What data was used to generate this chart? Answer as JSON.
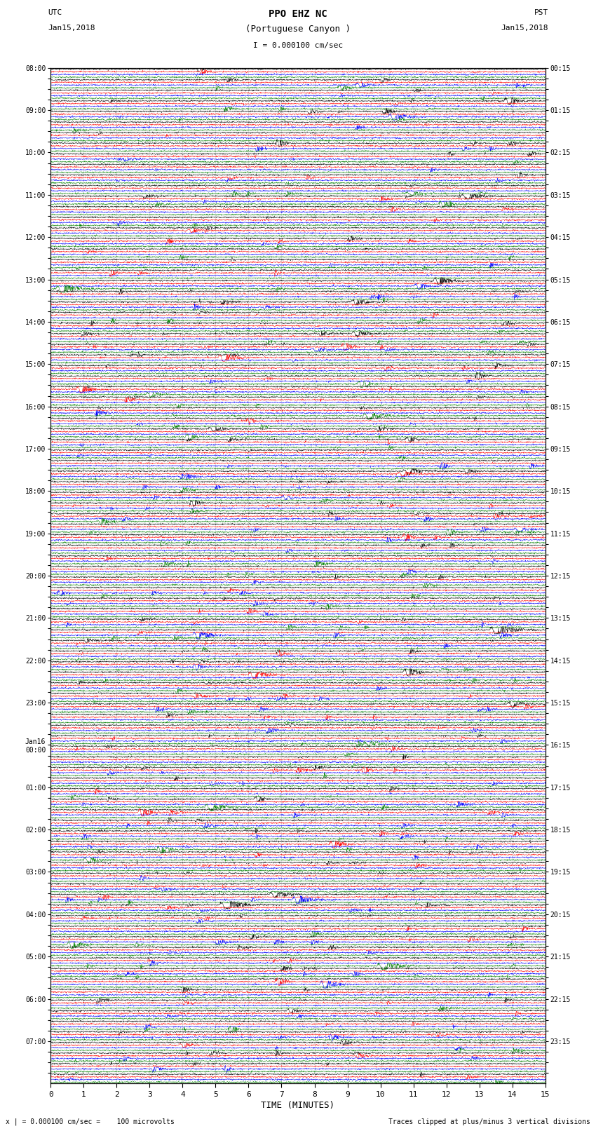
{
  "title_line1": "PPO EHZ NC",
  "title_line2": "(Portuguese Canyon )",
  "title_scale": "I = 0.000100 cm/sec",
  "utc_label": "UTC",
  "utc_date": "Jan15,2018",
  "pst_label": "PST",
  "pst_date": "Jan15,2018",
  "footer_left": "x | = 0.000100 cm/sec =    100 microvolts",
  "footer_right": "Traces clipped at plus/minus 3 vertical divisions",
  "xlabel": "TIME (MINUTES)",
  "left_times_utc": [
    "08:00",
    "",
    "",
    "",
    "09:00",
    "",
    "",
    "",
    "10:00",
    "",
    "",
    "",
    "11:00",
    "",
    "",
    "",
    "12:00",
    "",
    "",
    "",
    "13:00",
    "",
    "",
    "",
    "14:00",
    "",
    "",
    "",
    "15:00",
    "",
    "",
    "",
    "16:00",
    "",
    "",
    "",
    "17:00",
    "",
    "",
    "",
    "18:00",
    "",
    "",
    "",
    "19:00",
    "",
    "",
    "",
    "20:00",
    "",
    "",
    "",
    "21:00",
    "",
    "",
    "",
    "22:00",
    "",
    "",
    "",
    "23:00",
    "",
    "",
    "",
    "Jan16\n00:00",
    "",
    "",
    "",
    "01:00",
    "",
    "",
    "",
    "02:00",
    "",
    "",
    "",
    "03:00",
    "",
    "",
    "",
    "04:00",
    "",
    "",
    "",
    "05:00",
    "",
    "",
    "",
    "06:00",
    "",
    "",
    "",
    "07:00",
    "",
    "",
    ""
  ],
  "right_times_pst": [
    "00:15",
    "",
    "",
    "",
    "01:15",
    "",
    "",
    "",
    "02:15",
    "",
    "",
    "",
    "03:15",
    "",
    "",
    "",
    "04:15",
    "",
    "",
    "",
    "05:15",
    "",
    "",
    "",
    "06:15",
    "",
    "",
    "",
    "07:15",
    "",
    "",
    "",
    "08:15",
    "",
    "",
    "",
    "09:15",
    "",
    "",
    "",
    "10:15",
    "",
    "",
    "",
    "11:15",
    "",
    "",
    "",
    "12:15",
    "",
    "",
    "",
    "13:15",
    "",
    "",
    "",
    "14:15",
    "",
    "",
    "",
    "15:15",
    "",
    "",
    "",
    "16:15",
    "",
    "",
    "",
    "17:15",
    "",
    "",
    "",
    "18:15",
    "",
    "",
    "",
    "19:15",
    "",
    "",
    "",
    "20:15",
    "",
    "",
    "",
    "21:15",
    "",
    "",
    "",
    "22:15",
    "",
    "",
    "",
    "23:15",
    "",
    "",
    ""
  ],
  "colors": [
    "black",
    "red",
    "blue",
    "green"
  ],
  "n_rows": 96,
  "n_samples": 1800,
  "time_min": 0,
  "time_max": 15,
  "x_ticks": [
    0,
    1,
    2,
    3,
    4,
    5,
    6,
    7,
    8,
    9,
    10,
    11,
    12,
    13,
    14,
    15
  ],
  "bg_color": "white",
  "seed": 42
}
